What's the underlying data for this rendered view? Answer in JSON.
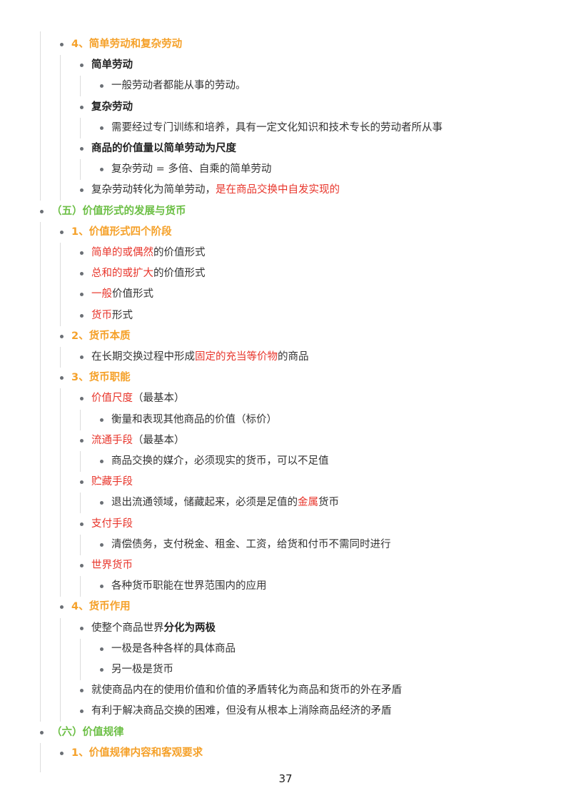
{
  "outline": [
    {
      "level": 1,
      "segments": [
        {
          "text": "4、简单劳动和复杂劳动",
          "style": "orange"
        }
      ]
    },
    {
      "level": 2,
      "segments": [
        {
          "text": "简单劳动",
          "style": "bold"
        }
      ]
    },
    {
      "level": 3,
      "segments": [
        {
          "text": "一般劳动者都能从事的劳动。",
          "style": ""
        }
      ]
    },
    {
      "level": 2,
      "segments": [
        {
          "text": "复杂劳动",
          "style": "bold"
        }
      ]
    },
    {
      "level": 3,
      "segments": [
        {
          "text": "需要经过专门训练和培养，具有一定文化知识和技术专长的劳动者所从事",
          "style": ""
        }
      ]
    },
    {
      "level": 2,
      "segments": [
        {
          "text": "商品的价值量以简单劳动为尺度",
          "style": "bold"
        }
      ]
    },
    {
      "level": 3,
      "segments": [
        {
          "text": "复杂劳动 = 多倍、自乘的简单劳动",
          "style": ""
        }
      ]
    },
    {
      "level": 2,
      "segments": [
        {
          "text": "复杂劳动转化为简单劳动，",
          "style": ""
        },
        {
          "text": "是在商品交换中自发实现的",
          "style": "red"
        }
      ]
    },
    {
      "level": 0,
      "segments": [
        {
          "text": "（五）价值形式的发展与货币",
          "style": "green"
        }
      ]
    },
    {
      "level": 1,
      "segments": [
        {
          "text": "1、价值形式四个阶段",
          "style": "orange"
        }
      ]
    },
    {
      "level": 2,
      "segments": [
        {
          "text": "简单的或偶然",
          "style": "red"
        },
        {
          "text": "的价值形式",
          "style": ""
        }
      ]
    },
    {
      "level": 2,
      "segments": [
        {
          "text": "总和的或扩大",
          "style": "red"
        },
        {
          "text": "的价值形式",
          "style": ""
        }
      ]
    },
    {
      "level": 2,
      "segments": [
        {
          "text": "一般",
          "style": "red"
        },
        {
          "text": "价值形式",
          "style": ""
        }
      ]
    },
    {
      "level": 2,
      "segments": [
        {
          "text": "货币",
          "style": "red"
        },
        {
          "text": "形式",
          "style": ""
        }
      ]
    },
    {
      "level": 1,
      "segments": [
        {
          "text": "2、货币本质",
          "style": "orange"
        }
      ]
    },
    {
      "level": 2,
      "segments": [
        {
          "text": "在长期交换过程中形成",
          "style": ""
        },
        {
          "text": "固定的充当等价物",
          "style": "red"
        },
        {
          "text": "的商品",
          "style": ""
        }
      ]
    },
    {
      "level": 1,
      "segments": [
        {
          "text": "3、货币职能",
          "style": "orange"
        }
      ]
    },
    {
      "level": 2,
      "segments": [
        {
          "text": "价值尺度",
          "style": "red"
        },
        {
          "text": "（最基本）",
          "style": ""
        }
      ]
    },
    {
      "level": 3,
      "segments": [
        {
          "text": " 衡量和表现其他商品的价值（标价）",
          "style": ""
        }
      ]
    },
    {
      "level": 2,
      "segments": [
        {
          "text": "流通手段",
          "style": "red"
        },
        {
          "text": "（最基本）",
          "style": ""
        }
      ]
    },
    {
      "level": 3,
      "segments": [
        {
          "text": " 商品交换的媒介，必须现实的货币，可以不足值",
          "style": ""
        }
      ]
    },
    {
      "level": 2,
      "segments": [
        {
          "text": "贮藏手段",
          "style": "red"
        }
      ]
    },
    {
      "level": 3,
      "segments": [
        {
          "text": "退出流通领域，储藏起来，必须是足值的",
          "style": ""
        },
        {
          "text": "金属",
          "style": "red"
        },
        {
          "text": "货币",
          "style": ""
        }
      ]
    },
    {
      "level": 2,
      "segments": [
        {
          "text": "支付手段",
          "style": "red"
        }
      ]
    },
    {
      "level": 3,
      "segments": [
        {
          "text": "清偿债务，支付税金、租金、工资，给货和付币不需同时进行",
          "style": ""
        }
      ]
    },
    {
      "level": 2,
      "segments": [
        {
          "text": "世界货币",
          "style": "red"
        }
      ]
    },
    {
      "level": 3,
      "segments": [
        {
          "text": "各种货币职能在世界范围内的应用",
          "style": ""
        }
      ]
    },
    {
      "level": 1,
      "segments": [
        {
          "text": "4、货币作用",
          "style": "orange"
        }
      ]
    },
    {
      "level": 2,
      "segments": [
        {
          "text": "使整个商品世界",
          "style": ""
        },
        {
          "text": "分化为两极",
          "style": "bold"
        }
      ]
    },
    {
      "level": 3,
      "segments": [
        {
          "text": "一极是各种各样的具体商品",
          "style": ""
        }
      ]
    },
    {
      "level": 3,
      "segments": [
        {
          "text": "另一极是货币",
          "style": ""
        }
      ]
    },
    {
      "level": 2,
      "segments": [
        {
          "text": "就使商品内在的使用价值和价值的矛盾转化为商品和货币的外在矛盾",
          "style": ""
        }
      ]
    },
    {
      "level": 2,
      "segments": [
        {
          "text": "有利于解决商品交换的困难，但没有从根本上消除商品经济的矛盾",
          "style": ""
        }
      ]
    },
    {
      "level": 0,
      "segments": [
        {
          "text": "（六）价值规律",
          "style": "green"
        }
      ]
    },
    {
      "level": 1,
      "segments": [
        {
          "text": "1、价值规律内容和客观要求",
          "style": "orange"
        }
      ]
    }
  ],
  "page_number": "37",
  "colors": {
    "red": "#e8352b",
    "orange": "#f5a12a",
    "green": "#6cbf45"
  }
}
